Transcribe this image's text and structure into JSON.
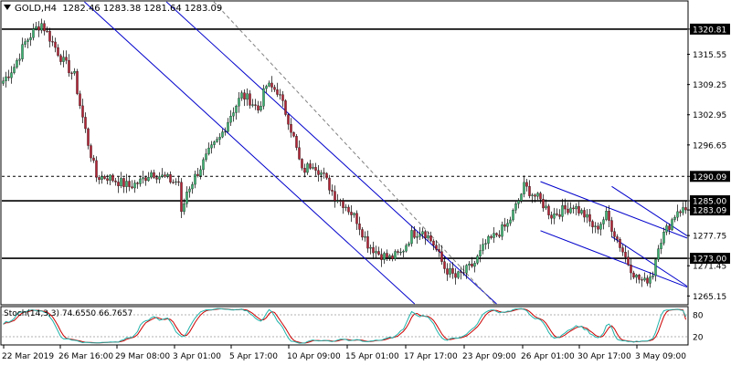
{
  "header": {
    "symbol": "GOLD,H4",
    "ohlc": "1282.46 1283.38 1281.64 1283.09"
  },
  "stoch": {
    "title": "Stoch(14,3,3) 74.6550 66.7657",
    "levels": [
      "80",
      "20"
    ]
  },
  "colors": {
    "bull": "#3cb371",
    "bear": "#b22234",
    "level_line": "#000000",
    "channel": "#0000cc",
    "grid_dash": "#808080",
    "stoch_main": "#20b2aa",
    "stoch_signal": "#cc0000",
    "current_price_label": "#000000"
  },
  "chart_data": {
    "type": "candlestick",
    "symbol": "GOLD",
    "timeframe": "H4",
    "y_axis_ticks": [
      "1320.81",
      "1315.55",
      "1309.25",
      "1302.95",
      "1296.65",
      "1290.09",
      "1285.00",
      "1283.09",
      "1277.75",
      "1273.00",
      "1271.45",
      "1265.15"
    ],
    "x_axis_ticks": [
      "22 Mar 2019",
      "26 Mar 16:00",
      "29 Mar 08:00",
      "3 Apr 01:00",
      "5 Apr 17:00",
      "10 Apr 09:00",
      "15 Apr 01:00",
      "17 Apr 17:00",
      "23 Apr 09:00",
      "26 Apr 01:00",
      "30 Apr 17:00",
      "3 May 09:00"
    ],
    "ylim": [
      1263.5,
      1326.5
    ],
    "horizontal_levels": [
      {
        "price": 1320.81,
        "style": "solid",
        "label": "1320.81"
      },
      {
        "price": 1290.09,
        "style": "dashed",
        "label": "1290.09"
      },
      {
        "price": 1285.0,
        "style": "solid",
        "label": "1285.00"
      },
      {
        "price": 1273.0,
        "style": "solid",
        "label": "1273.00"
      }
    ],
    "current_price": "1283.09",
    "anchors": [
      [
        0,
        1310
      ],
      [
        4,
        1313
      ],
      [
        8,
        1318
      ],
      [
        12,
        1321
      ],
      [
        14,
        1322
      ],
      [
        18,
        1318
      ],
      [
        22,
        1314
      ],
      [
        26,
        1311
      ],
      [
        28,
        1305
      ],
      [
        31,
        1297
      ],
      [
        34,
        1290
      ],
      [
        38,
        1290
      ],
      [
        42,
        1289
      ],
      [
        46,
        1288
      ],
      [
        50,
        1289
      ],
      [
        54,
        1291
      ],
      [
        58,
        1290
      ],
      [
        62,
        1289
      ],
      [
        64,
        1289
      ],
      [
        65,
        1282
      ],
      [
        67,
        1287
      ],
      [
        71,
        1291
      ],
      [
        75,
        1295
      ],
      [
        79,
        1298
      ],
      [
        83,
        1303
      ],
      [
        87,
        1307
      ],
      [
        90,
        1306
      ],
      [
        93,
        1304
      ],
      [
        96,
        1309
      ],
      [
        100,
        1308
      ],
      [
        104,
        1302
      ],
      [
        106,
        1298
      ],
      [
        109,
        1291
      ],
      [
        113,
        1293
      ],
      [
        117,
        1290
      ],
      [
        121,
        1286
      ],
      [
        125,
        1284
      ],
      [
        129,
        1281
      ],
      [
        133,
        1276
      ],
      [
        137,
        1274
      ],
      [
        141,
        1273
      ],
      [
        145,
        1274
      ],
      [
        149,
        1278
      ],
      [
        153,
        1279
      ],
      [
        157,
        1276
      ],
      [
        161,
        1271
      ],
      [
        165,
        1269
      ],
      [
        168,
        1270
      ],
      [
        172,
        1272
      ],
      [
        176,
        1276
      ],
      [
        180,
        1278
      ],
      [
        184,
        1280
      ],
      [
        188,
        1285
      ],
      [
        190,
        1288
      ],
      [
        192,
        1287
      ],
      [
        196,
        1285
      ],
      [
        200,
        1282
      ],
      [
        204,
        1283
      ],
      [
        208,
        1284
      ],
      [
        212,
        1282
      ],
      [
        216,
        1279
      ],
      [
        220,
        1282
      ],
      [
        224,
        1277
      ],
      [
        228,
        1272
      ],
      [
        231,
        1269
      ],
      [
        234,
        1268
      ],
      [
        237,
        1270
      ],
      [
        239,
        1276
      ],
      [
        242,
        1279
      ],
      [
        244,
        1281
      ],
      [
        246,
        1283.09
      ]
    ],
    "channels": [
      {
        "p1": [
          0,
          1342
        ],
        "p2": [
          130,
          1274
        ],
        "p3": [
          93,
          1309
        ],
        "color": "#0000cc"
      },
      {
        "p1": [
          196,
          1289
        ],
        "p2": [
          246,
          1278
        ],
        "p3": [
          204,
          1277
        ],
        "color": "#0000cc"
      },
      {
        "p1": [
          222,
          1288
        ],
        "p2": [
          246,
          1279
        ],
        "p3": [
          226,
          1276
        ],
        "color": "#0000cc"
      }
    ],
    "dashed_trendline": {
      "from": [
        63,
        1335
      ],
      "to": [
        172,
        1268
      ]
    },
    "stochastic": {
      "k_period": 14,
      "d_period": 3,
      "slowing": 3,
      "main_last": 74.655,
      "signal_last": 66.7657
    }
  }
}
